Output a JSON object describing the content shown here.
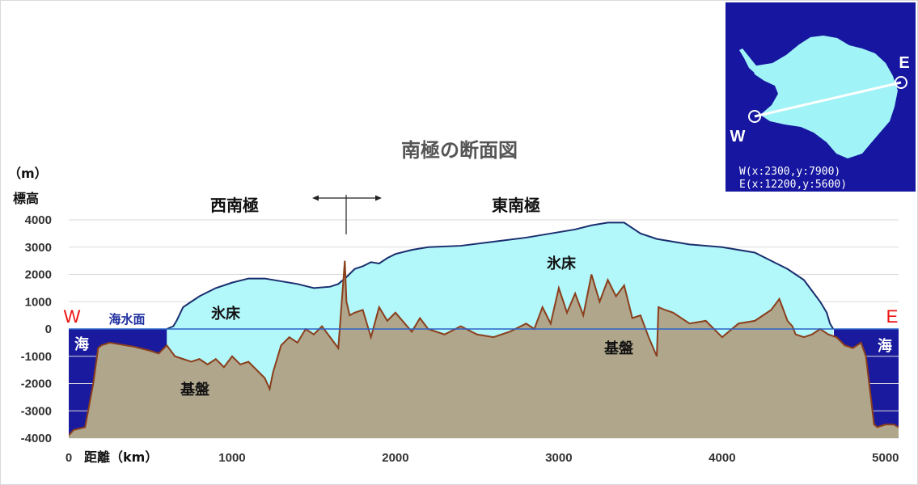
{
  "chart_data": {
    "type": "area",
    "title": "南極の断面図",
    "xlabel": "距離（km）",
    "ylabel_unit": "（m）",
    "ylabel": "標高",
    "xlim": [
      0,
      5080
    ],
    "ylim": [
      -4000,
      4000
    ],
    "x_ticks": [
      0,
      1000,
      2000,
      3000,
      4000,
      5000
    ],
    "y_ticks": [
      4000,
      3000,
      2000,
      1000,
      0,
      -1000,
      -2000,
      -3000,
      -4000
    ],
    "grid": true,
    "sea_level": 0,
    "series": [
      {
        "name": "氷床",
        "x": [
          600,
          640,
          660,
          700,
          750,
          800,
          900,
          1000,
          1100,
          1200,
          1300,
          1400,
          1500,
          1600,
          1650,
          1700,
          1750,
          1800,
          1850,
          1900,
          1950,
          2000,
          2100,
          2200,
          2400,
          2600,
          2800,
          3000,
          3100,
          3200,
          3300,
          3400,
          3500,
          3600,
          3800,
          4000,
          4200,
          4300,
          4400,
          4500,
          4550,
          4600,
          4640,
          4660,
          4680
        ],
        "values": [
          0,
          100,
          300,
          800,
          1000,
          1200,
          1500,
          1700,
          1850,
          1850,
          1750,
          1650,
          1500,
          1550,
          1650,
          1900,
          2200,
          2300,
          2450,
          2400,
          2600,
          2750,
          2900,
          3000,
          3050,
          3200,
          3350,
          3550,
          3650,
          3800,
          3900,
          3900,
          3500,
          3300,
          3100,
          3000,
          2800,
          2500,
          2200,
          1800,
          1400,
          1000,
          600,
          200,
          0
        ]
      },
      {
        "name": "基盤",
        "x": [
          0,
          30,
          100,
          150,
          180,
          200,
          250,
          300,
          400,
          500,
          550,
          600,
          650,
          700,
          750,
          800,
          850,
          900,
          950,
          1000,
          1050,
          1100,
          1150,
          1200,
          1230,
          1250,
          1300,
          1350,
          1400,
          1450,
          1500,
          1550,
          1600,
          1650,
          1690,
          1700,
          1720,
          1750,
          1800,
          1850,
          1900,
          1950,
          2000,
          2100,
          2150,
          2200,
          2300,
          2400,
          2500,
          2600,
          2700,
          2800,
          2850,
          2900,
          2950,
          3000,
          3050,
          3100,
          3150,
          3200,
          3250,
          3300,
          3350,
          3400,
          3450,
          3500,
          3550,
          3600,
          3610,
          3650,
          3700,
          3800,
          3900,
          4000,
          4100,
          4200,
          4300,
          4350,
          4400,
          4430,
          4450,
          4500,
          4550,
          4600,
          4650,
          4700,
          4750,
          4800,
          4850,
          4880,
          4900,
          4930,
          4950,
          5000,
          5050,
          5080
        ],
        "values": [
          -3900,
          -3700,
          -3600,
          -2000,
          -700,
          -600,
          -500,
          -550,
          -650,
          -800,
          -900,
          -600,
          -1000,
          -1100,
          -1200,
          -1100,
          -1300,
          -1100,
          -1400,
          -1000,
          -1300,
          -1200,
          -1500,
          -1800,
          -2200,
          -1600,
          -600,
          -300,
          -500,
          0,
          -200,
          100,
          -300,
          -700,
          2500,
          1000,
          500,
          600,
          700,
          -300,
          800,
          300,
          600,
          -100,
          400,
          0,
          -200,
          100,
          -200,
          -300,
          -100,
          200,
          0,
          800,
          200,
          1500,
          600,
          1300,
          500,
          2000,
          1000,
          1800,
          1200,
          1600,
          400,
          500,
          -300,
          -1000,
          800,
          700,
          600,
          200,
          300,
          -300,
          200,
          300,
          700,
          1100,
          300,
          100,
          -200,
          -300,
          -200,
          0,
          -200,
          -300,
          -600,
          -700,
          -500,
          -1000,
          -2000,
          -3500,
          -3600,
          -3500,
          -3500,
          -3600
        ]
      }
    ],
    "annotations": {
      "west_region": "西南極",
      "east_region": "東南極",
      "ice_sheet": "氷床",
      "bedrock": "基盤",
      "sea": "海",
      "sea_level": "海水面",
      "west": "W",
      "east": "E"
    },
    "colors": {
      "ice": "#b2f7f9",
      "ice_outline": "#1a2e6e",
      "bedrock": "#afa68c",
      "bedrock_outline": "#8b3e1c",
      "sea": "#1a1a9e",
      "sea_level_line": "#2c64c8",
      "marker": "#ee1111"
    }
  },
  "inset": {
    "west_label": "W",
    "east_label": "E",
    "west_coord": "W(x:2300,y:7900)",
    "east_coord": "E(x:12200,y:5600)",
    "colors": {
      "background": "#1616a0",
      "land": "#a0f3f6"
    }
  }
}
